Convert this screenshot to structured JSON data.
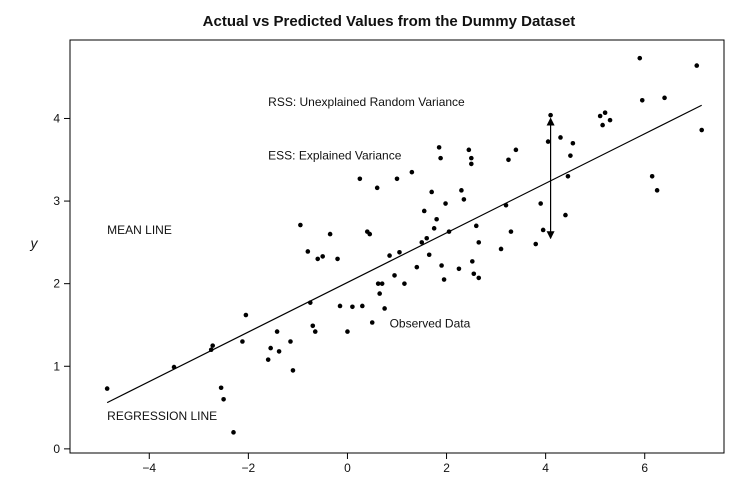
{
  "chart_data": {
    "type": "scatter",
    "title": "Actual vs Predicted Values from the Dummy Dataset",
    "xlabel": "",
    "ylabel": "y",
    "xlim": [
      -5.6,
      7.6
    ],
    "ylim": [
      -0.05,
      4.95
    ],
    "xticks": [
      -4,
      -2,
      0,
      2,
      4,
      6
    ],
    "yticks": [
      0,
      1,
      2,
      3,
      4
    ],
    "x_tick_labels": [
      "−4",
      "−2",
      "0",
      "2",
      "4",
      "6"
    ],
    "y_tick_labels": [
      "0",
      "1",
      "2",
      "3",
      "4"
    ],
    "grid": false,
    "regression_line": {
      "x": [
        -4.85,
        7.15
      ],
      "y": [
        0.56,
        4.16
      ]
    },
    "arrows": [
      {
        "x": 4.1,
        "y_from": 3.28,
        "y_to": 4.0
      },
      {
        "x": 4.1,
        "y_from": 3.28,
        "y_to": 2.55
      }
    ],
    "annotations": [
      {
        "text": "RSS: Unexplained Random Variance",
        "x": -1.6,
        "y": 4.2
      },
      {
        "text": "ESS: Explained Variance",
        "x": -1.6,
        "y": 3.55
      },
      {
        "text": "MEAN LINE",
        "x": -4.85,
        "y": 2.65
      },
      {
        "text": "Observed Data",
        "x": 0.85,
        "y": 1.52
      },
      {
        "text": "REGRESSION LINE",
        "x": -4.85,
        "y": 0.4
      }
    ],
    "points": [
      [
        -4.85,
        0.73
      ],
      [
        -3.5,
        0.99
      ],
      [
        -2.75,
        1.2
      ],
      [
        -2.72,
        1.25
      ],
      [
        -2.55,
        0.74
      ],
      [
        -2.5,
        0.6
      ],
      [
        -2.3,
        0.2
      ],
      [
        -2.12,
        1.3
      ],
      [
        -2.05,
        1.62
      ],
      [
        -1.6,
        1.08
      ],
      [
        -1.55,
        1.22
      ],
      [
        -1.42,
        1.42
      ],
      [
        -1.38,
        1.18
      ],
      [
        -1.15,
        1.3
      ],
      [
        -1.1,
        0.95
      ],
      [
        -0.95,
        2.71
      ],
      [
        -0.8,
        2.39
      ],
      [
        -0.75,
        1.77
      ],
      [
        -0.7,
        1.49
      ],
      [
        -0.65,
        1.42
      ],
      [
        -0.6,
        2.3
      ],
      [
        -0.5,
        2.33
      ],
      [
        -0.35,
        2.6
      ],
      [
        -0.2,
        2.3
      ],
      [
        -0.15,
        1.73
      ],
      [
        0.0,
        1.42
      ],
      [
        0.1,
        1.72
      ],
      [
        0.25,
        3.27
      ],
      [
        0.3,
        1.73
      ],
      [
        0.4,
        2.63
      ],
      [
        0.45,
        2.6
      ],
      [
        0.5,
        1.53
      ],
      [
        0.6,
        3.16
      ],
      [
        0.62,
        2.0
      ],
      [
        0.65,
        1.88
      ],
      [
        0.7,
        2.0
      ],
      [
        0.75,
        1.7
      ],
      [
        0.85,
        2.34
      ],
      [
        0.95,
        2.1
      ],
      [
        1.0,
        3.27
      ],
      [
        1.05,
        2.38
      ],
      [
        1.15,
        2.0
      ],
      [
        1.3,
        3.35
      ],
      [
        1.4,
        2.2
      ],
      [
        1.5,
        2.5
      ],
      [
        1.55,
        2.88
      ],
      [
        1.6,
        2.55
      ],
      [
        1.65,
        2.35
      ],
      [
        1.7,
        3.11
      ],
      [
        1.75,
        2.67
      ],
      [
        1.8,
        2.78
      ],
      [
        1.85,
        3.65
      ],
      [
        1.88,
        3.52
      ],
      [
        1.9,
        2.22
      ],
      [
        1.95,
        2.05
      ],
      [
        1.98,
        2.97
      ],
      [
        2.05,
        2.63
      ],
      [
        2.25,
        2.18
      ],
      [
        2.3,
        3.13
      ],
      [
        2.35,
        3.02
      ],
      [
        2.45,
        3.62
      ],
      [
        2.5,
        3.52
      ],
      [
        2.5,
        3.45
      ],
      [
        2.52,
        2.27
      ],
      [
        2.55,
        2.12
      ],
      [
        2.6,
        2.7
      ],
      [
        2.65,
        2.5
      ],
      [
        2.65,
        2.07
      ],
      [
        3.1,
        2.42
      ],
      [
        3.2,
        2.95
      ],
      [
        3.25,
        3.5
      ],
      [
        3.3,
        2.63
      ],
      [
        3.4,
        3.62
      ],
      [
        3.8,
        2.48
      ],
      [
        3.9,
        2.97
      ],
      [
        3.95,
        2.65
      ],
      [
        4.05,
        3.72
      ],
      [
        4.1,
        4.04
      ],
      [
        4.3,
        3.77
      ],
      [
        4.4,
        2.83
      ],
      [
        4.45,
        3.3
      ],
      [
        4.5,
        3.55
      ],
      [
        4.55,
        3.7
      ],
      [
        5.1,
        4.03
      ],
      [
        5.15,
        3.92
      ],
      [
        5.2,
        4.07
      ],
      [
        5.3,
        3.98
      ],
      [
        5.9,
        4.73
      ],
      [
        5.95,
        4.22
      ],
      [
        6.15,
        3.3
      ],
      [
        6.25,
        3.13
      ],
      [
        6.4,
        4.25
      ],
      [
        7.05,
        4.64
      ],
      [
        7.15,
        3.86
      ]
    ]
  }
}
